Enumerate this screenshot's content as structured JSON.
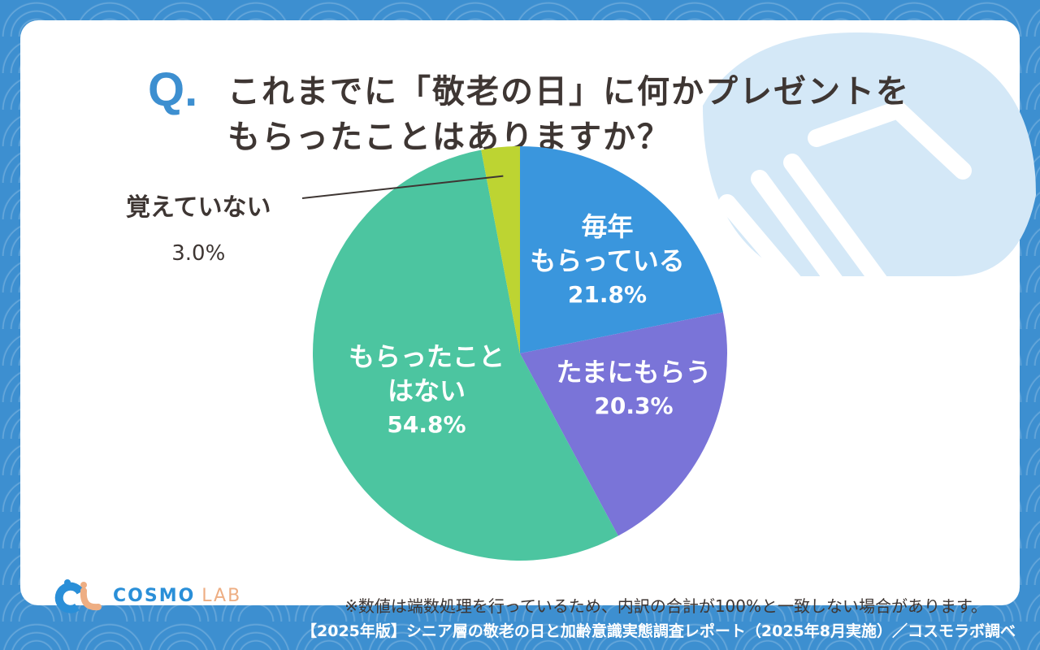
{
  "question_mark": "Q.",
  "title_line1": "これまでに「敬老の日」に何かプレゼントを",
  "title_line2": "もらったことはありますか？",
  "chart_data": {
    "type": "pie",
    "title": "これまでに「敬老の日」に何かプレゼントをもらったことはありますか？",
    "start": "top",
    "direction": "clockwise",
    "slices": [
      {
        "label_l1": "毎年",
        "label_l2": "もらっている",
        "value": 21.8,
        "display": "21.8%",
        "color": "#3a96dd"
      },
      {
        "label_l1": "たまにもらう",
        "label_l2": "",
        "value": 20.3,
        "display": "20.3%",
        "color": "#7a74d8"
      },
      {
        "label_l1": "もらったこと",
        "label_l2": "はない",
        "value": 54.8,
        "display": "54.8%",
        "color": "#4cc5a0"
      },
      {
        "label_l1": "覚えていない",
        "label_l2": "",
        "value": 3.0,
        "display": "3.0%",
        "color": "#bdd432"
      }
    ]
  },
  "note": "※数値は端数処理を行っているため、内訳の合計が100%と一致しない場合があります。",
  "logo": {
    "main": "COSMO",
    "sub": "LAB"
  },
  "footer": "【2025年版】シニア層の敬老の日と加齢意識実態調査レポート（2025年8月実施）／コスモラボ調べ"
}
